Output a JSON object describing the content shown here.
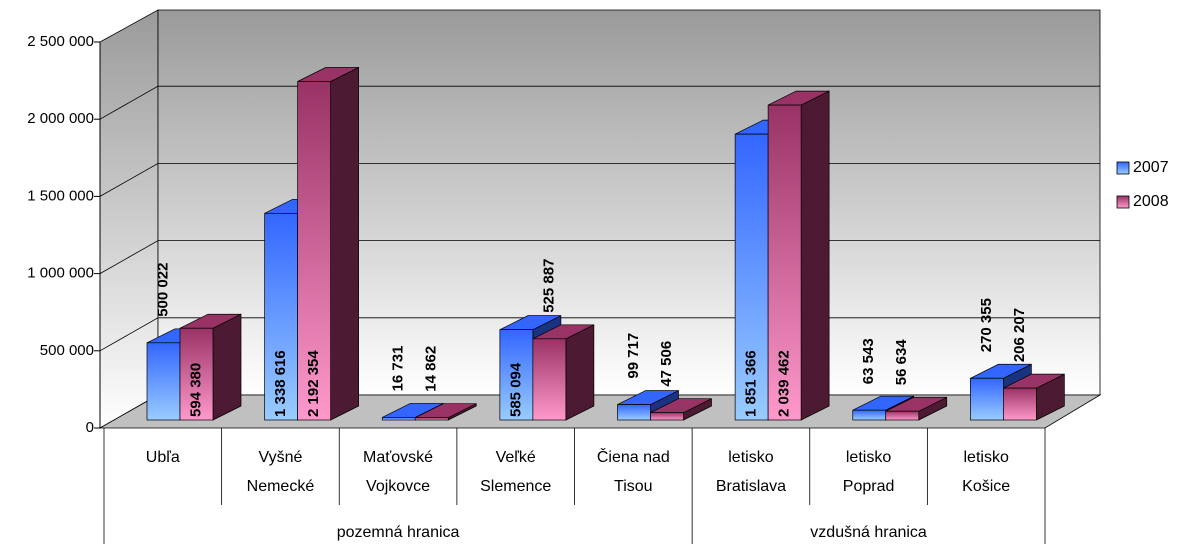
{
  "chart_data": {
    "type": "bar3d",
    "categories": [
      [
        "Ubľa"
      ],
      [
        "Vyšné",
        "Nemecké"
      ],
      [
        "Maťovské",
        "Vojkovce"
      ],
      [
        "Veľké",
        "Slemence"
      ],
      [
        "Čiena nad",
        "Tisou"
      ],
      [
        "letisko",
        "Bratislava"
      ],
      [
        "letisko",
        "Poprad"
      ],
      [
        "letisko",
        "Košice"
      ]
    ],
    "groups": [
      {
        "name": "pozemná hranica",
        "span": 5
      },
      {
        "name": "vzdušná hranica",
        "span": 3
      }
    ],
    "series": [
      {
        "name": "2007",
        "color": "#3366ff",
        "light": "#99ccff",
        "values": [
          500022,
          1338616,
          16731,
          585094,
          99717,
          1851366,
          63543,
          270355
        ],
        "value_labels": [
          "500 022",
          "1 338 616",
          "16 731",
          "585 094",
          "99 717",
          "1 851 366",
          "63 543",
          "270 355"
        ]
      },
      {
        "name": "2008",
        "color": "#993366",
        "light": "#ff99cc",
        "values": [
          594380,
          2192354,
          14862,
          525887,
          47506,
          2039462,
          56634,
          206207
        ],
        "value_labels": [
          "594 380",
          "2 192 354",
          "14 862",
          "525 887",
          "47 506",
          "2 039 462",
          "56 634",
          "206 207"
        ]
      }
    ],
    "ylim": [
      0,
      2500000
    ],
    "yticks": [
      {
        "value": 0,
        "label": "0"
      },
      {
        "value": 500000,
        "label": "500 000"
      },
      {
        "value": 1000000,
        "label": "1 000 000"
      },
      {
        "value": 1500000,
        "label": "1 500 000"
      },
      {
        "value": 2000000,
        "label": "2 000 000"
      },
      {
        "value": 2500000,
        "label": "2 500 000"
      }
    ],
    "grid": true,
    "legend": "right"
  }
}
